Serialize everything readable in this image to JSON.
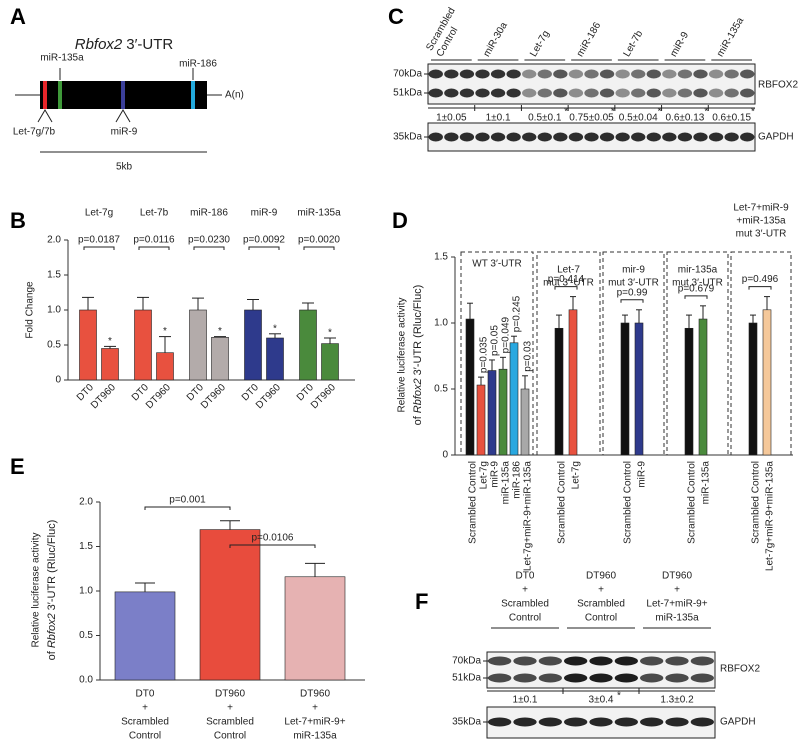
{
  "panel_a": {
    "letter": "A",
    "title_gene": "Rbfox2",
    "title_rest": "3′-UTR",
    "sites": [
      {
        "label": "Let-7g/7b",
        "color": "#e8262a"
      },
      {
        "label": "miR-135a",
        "color": "#3f9a3a"
      },
      {
        "label": "miR-9",
        "color": "#3b3f9a"
      },
      {
        "label": "miR-186",
        "color": "#22aadd"
      }
    ],
    "tail": "A(n)",
    "scale": "5kb"
  },
  "panel_c": {
    "letter": "C",
    "lanes": [
      {
        "label": [
          "Scrambled",
          "Control"
        ],
        "quantification": "1±0.05"
      },
      {
        "label": [
          "miR-30a"
        ],
        "quantification": "1±0.1"
      },
      {
        "label": [
          "Let-7g"
        ],
        "quantification": "0.5±0.1",
        "significance": "*"
      },
      {
        "label": [
          "miR-186"
        ],
        "quantification": "0.75±0.05",
        "significance": "*"
      },
      {
        "label": [
          "Let-7b"
        ],
        "quantification": "0.5±0.04",
        "significance": "*"
      },
      {
        "label": [
          "miR-9"
        ],
        "quantification": "0.6±0.13",
        "significance": "*"
      },
      {
        "label": [
          "miR-135a"
        ],
        "quantification": "0.6±0.15",
        "significance": "*"
      }
    ],
    "markers": [
      "70kDa",
      "51kDa",
      "35kDa"
    ],
    "proteins": [
      "RBFOX2",
      "GAPDH"
    ]
  },
  "panel_f": {
    "letter": "F",
    "lanes": [
      {
        "label": [
          "DT0",
          "+",
          "Scrambled",
          "Control"
        ],
        "quantification": "1±0.1"
      },
      {
        "label": [
          "DT960",
          "+",
          "Scrambled",
          "Control"
        ],
        "quantification": "3±0.4",
        "significance": "*"
      },
      {
        "label": [
          "DT960",
          "+",
          "Let-7+miR-9+",
          "miR-135a"
        ],
        "quantification": "1.3±0.2"
      }
    ],
    "markers": [
      "70kDa",
      "51kDa",
      "35kDa"
    ],
    "proteins": [
      "RBFOX2",
      "GAPDH"
    ]
  },
  "chart_data": [
    {
      "type": "bar",
      "letter": "B",
      "ylabel": "Fold Change",
      "ylim": [
        0,
        2
      ],
      "yticks": [
        0,
        0.5,
        {
          "value": 1,
          "label": "1.0"
        },
        1.5,
        {
          "value": 2,
          "label": "2.0"
        }
      ],
      "groups": [
        {
          "label": "Let-7g",
          "color": "#e8513f",
          "annotation": "p=0.0187",
          "significance": "*",
          "categories": [
            "DT0",
            "DT960"
          ],
          "values": [
            1.0,
            0.45
          ],
          "errors": [
            0.18,
            0.03
          ]
        },
        {
          "label": "Let-7b",
          "color": "#e8513f",
          "annotation": "p=0.0116",
          "significance": "*",
          "categories": [
            "DT0",
            "DT960"
          ],
          "values": [
            1.0,
            0.39
          ],
          "errors": [
            0.18,
            0.23
          ]
        },
        {
          "label": "miR-186",
          "color": "#b3abaa",
          "annotation": "p=0.0230",
          "significance": "*",
          "categories": [
            "DT0",
            "DT960"
          ],
          "values": [
            1.0,
            0.61
          ],
          "errors": [
            0.17,
            0.01
          ]
        },
        {
          "label": "miR-9",
          "color": "#2e3a8c",
          "annotation": "p=0.0092",
          "significance": "*",
          "categories": [
            "DT0",
            "DT960"
          ],
          "values": [
            1.0,
            0.6
          ],
          "errors": [
            0.15,
            0.06
          ]
        },
        {
          "label": "miR-135a",
          "color": "#4a8a3c",
          "annotation": "p=0.0020",
          "significance": "*",
          "categories": [
            "DT0",
            "DT960"
          ],
          "values": [
            1.0,
            0.52
          ],
          "errors": [
            0.1,
            0.08
          ]
        }
      ]
    },
    {
      "type": "bar",
      "letter": "D",
      "ylabel": "Relative luciferase activity",
      "ylabel_of": "of",
      "ylabel_gene": "Rbfox2",
      "ylabel_rest": "3′-UTR (Rluc/Fluc)",
      "ylim": [
        0,
        1.5
      ],
      "yticks": [
        0,
        0.5,
        {
          "value": 1,
          "label": "1.0"
        },
        1.5
      ],
      "groups": [
        {
          "label": [
            "WT 3′-UTR"
          ],
          "annotations": [
            "p=0.035",
            "p=0.05",
            "p=0.049",
            "p=0.245",
            "p=0.03"
          ],
          "categories": [
            "Scrambled Control",
            "Let-7g",
            "miR-9",
            "miR-135a",
            "miR-186",
            "Let-7g+miR-9+miR-135a"
          ],
          "values": [
            1.03,
            0.53,
            0.64,
            0.65,
            0.85,
            0.5
          ],
          "errors": [
            0.12,
            0.06,
            0.08,
            0.09,
            0.05,
            0.1
          ],
          "colors": [
            "#111111",
            "#e8513f",
            "#2e3a8c",
            "#4a8a3c",
            "#29a8e0",
            "#a8a8a8"
          ]
        },
        {
          "label": [
            "Let-7",
            "mut 3′-UTR"
          ],
          "annotations": [
            "p=0.414"
          ],
          "categories": [
            "Scrambled Control",
            "Let-7g"
          ],
          "values": [
            0.96,
            1.1
          ],
          "errors": [
            0.1,
            0.1
          ],
          "colors": [
            "#111111",
            "#e8513f"
          ]
        },
        {
          "label": [
            "mir-9",
            "mut 3′-UTR"
          ],
          "annotations": [
            "p=0.99"
          ],
          "categories": [
            "Scrambled Control",
            "miR-9"
          ],
          "values": [
            1.0,
            1.0
          ],
          "errors": [
            0.06,
            0.1
          ],
          "colors": [
            "#111111",
            "#2e3a8c"
          ]
        },
        {
          "label": [
            "mir-135a",
            "mut 3′-UTR"
          ],
          "annotations": [
            "p=0.679"
          ],
          "categories": [
            "Scrambled Control",
            "miR-135a"
          ],
          "values": [
            0.96,
            1.03
          ],
          "errors": [
            0.1,
            0.1
          ],
          "colors": [
            "#111111",
            "#4a8a3c"
          ]
        },
        {
          "label": [
            "Let-7+miR-9",
            "+miR-135a",
            "mut 3′-UTR"
          ],
          "annotations": [
            "p=0.496"
          ],
          "categories": [
            "Scrambled Control",
            "Let-7g+miR-9+miR-135a"
          ],
          "values": [
            1.0,
            1.1
          ],
          "errors": [
            0.06,
            0.1
          ],
          "colors": [
            "#111111",
            "#f5c89a"
          ]
        }
      ]
    },
    {
      "type": "bar",
      "letter": "E",
      "ylabel": "Relative luciferase activity",
      "ylabel_of": "of",
      "ylabel_gene": "Rbfox2",
      "ylabel_rest": "3′-UTR (Rluc/Fluc)",
      "ylim": [
        0,
        2
      ],
      "yticks": [
        {
          "value": 0,
          "label": "0.0"
        },
        0.5,
        {
          "value": 1,
          "label": "1.0"
        },
        1.5,
        {
          "value": 2,
          "label": "2.0"
        }
      ],
      "categories": [
        [
          "DT0",
          "+",
          "Scrambled",
          "Control"
        ],
        [
          "DT960",
          "+",
          "Scrambled",
          "Control"
        ],
        [
          "DT960",
          "+",
          "Let-7+miR-9+",
          "miR-135a"
        ]
      ],
      "values": [
        0.99,
        1.69,
        1.16
      ],
      "errors": [
        0.1,
        0.1,
        0.15
      ],
      "colors": [
        "#7b7fc8",
        "#e84c3d",
        "#e6b2b2"
      ],
      "comparisons": [
        "p=0.001",
        "p=0.0106"
      ]
    }
  ]
}
